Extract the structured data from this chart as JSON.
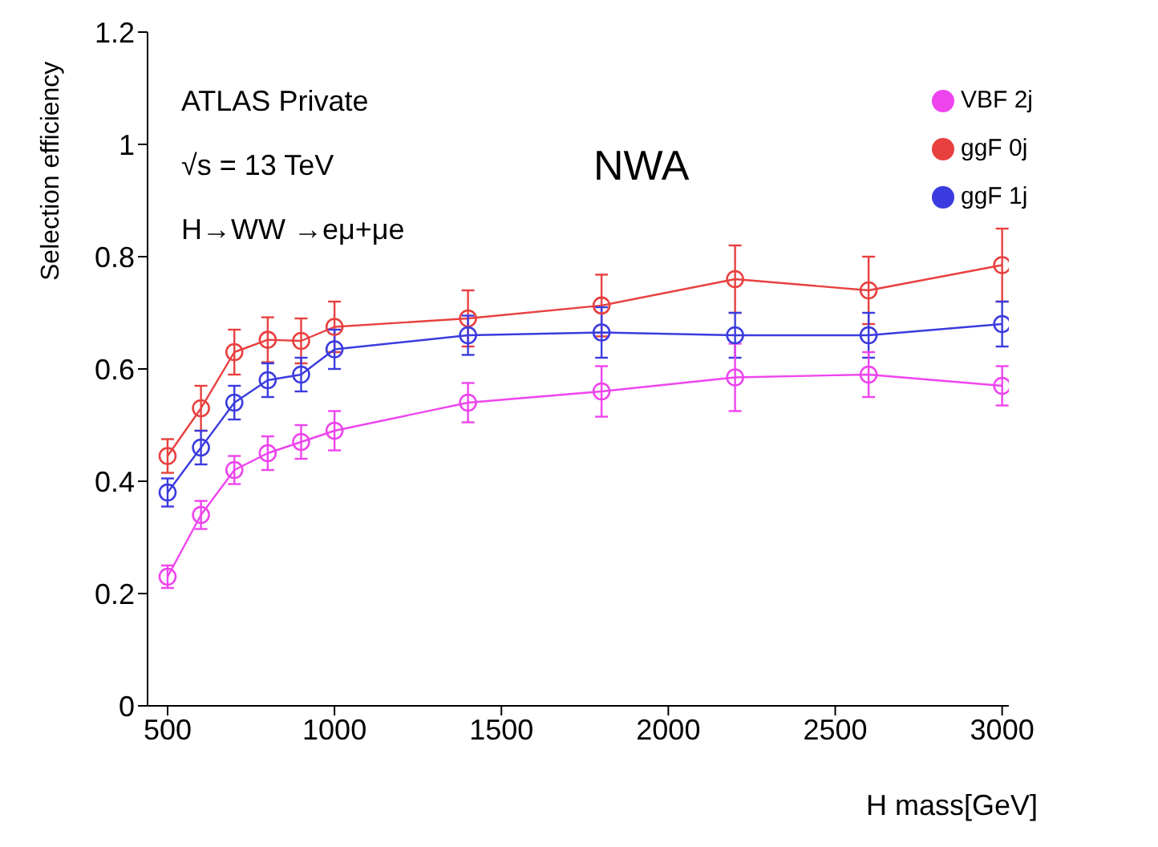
{
  "chart_data": {
    "type": "line",
    "xlabel": "H mass[GeV]",
    "ylabel": "Selection efficiency",
    "x": [
      500,
      600,
      700,
      800,
      900,
      1000,
      1400,
      1800,
      2200,
      2600,
      3000
    ],
    "series": [
      {
        "name": "ggF 0j",
        "color": "#e8403f",
        "values": [
          0.445,
          0.53,
          0.63,
          0.652,
          0.65,
          0.675,
          0.69,
          0.713,
          0.76,
          0.74,
          0.785
        ],
        "errors": [
          0.03,
          0.04,
          0.04,
          0.04,
          0.04,
          0.045,
          0.05,
          0.055,
          0.06,
          0.06,
          0.065
        ]
      },
      {
        "name": "ggF 1j",
        "color": "#3b3bdf",
        "values": [
          0.38,
          0.46,
          0.54,
          0.58,
          0.59,
          0.635,
          0.66,
          0.665,
          0.66,
          0.66,
          0.68
        ],
        "errors": [
          0.025,
          0.03,
          0.03,
          0.03,
          0.03,
          0.035,
          0.035,
          0.045,
          0.04,
          0.04,
          0.04
        ]
      },
      {
        "name": "VBF 2j",
        "color": "#ee44ee",
        "values": [
          0.23,
          0.34,
          0.42,
          0.45,
          0.47,
          0.49,
          0.54,
          0.56,
          0.585,
          0.59,
          0.57
        ],
        "errors": [
          0.02,
          0.025,
          0.025,
          0.03,
          0.03,
          0.035,
          0.035,
          0.045,
          0.06,
          0.04,
          0.035
        ]
      }
    ],
    "xlim": [
      440,
      3020
    ],
    "xticks": [
      500,
      1000,
      1500,
      2000,
      2500,
      3000
    ],
    "ylim": [
      0,
      1.2
    ],
    "yticks": [
      0,
      0.2,
      0.4,
      0.6,
      0.8,
      1,
      1.2
    ],
    "grid": false,
    "legend": "top right",
    "marker": "circle",
    "line_style": "solid",
    "annotations": [
      "ATLAS Private",
      "√s = 13 TeV",
      "H→WW →eμ+μe",
      "NWA"
    ]
  }
}
